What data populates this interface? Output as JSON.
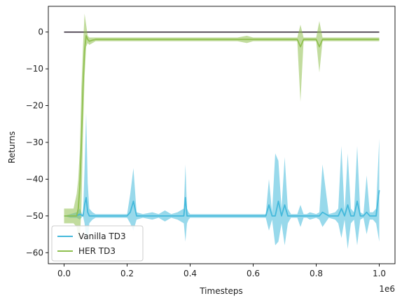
{
  "chart_data": {
    "type": "line",
    "title": "",
    "xlabel": "Timesteps",
    "ylabel": "Returns",
    "x_offset_label": "1e6",
    "xlim": [
      -0.05,
      1.05
    ],
    "ylim": [
      -63,
      7
    ],
    "x_ticks": [
      0.0,
      0.2,
      0.4,
      0.6,
      0.8,
      1.0
    ],
    "x_tick_labels": [
      "0.0",
      "0.2",
      "0.4",
      "0.6",
      "0.8",
      "1.0"
    ],
    "y_ticks": [
      0,
      -10,
      -20,
      -30,
      -40,
      -50,
      -60
    ],
    "y_tick_labels": [
      "0",
      "−10",
      "−20",
      "−30",
      "−40",
      "−50",
      "−60"
    ],
    "legend_position": "lower-left",
    "grid": false,
    "reference_line": {
      "value": 0,
      "color": "#2b1f2f"
    },
    "series": [
      {
        "name": "Vanilla TD3",
        "color": "#44b9db",
        "fill_color": "#44b9db",
        "x": [
          0.0,
          0.02,
          0.04,
          0.05,
          0.06,
          0.065,
          0.07,
          0.075,
          0.08,
          0.09,
          0.1,
          0.12,
          0.15,
          0.18,
          0.2,
          0.21,
          0.22,
          0.23,
          0.25,
          0.28,
          0.3,
          0.32,
          0.34,
          0.36,
          0.38,
          0.385,
          0.39,
          0.395,
          0.4,
          0.45,
          0.48,
          0.5,
          0.55,
          0.6,
          0.64,
          0.65,
          0.66,
          0.67,
          0.68,
          0.69,
          0.7,
          0.71,
          0.72,
          0.74,
          0.75,
          0.76,
          0.77,
          0.78,
          0.8,
          0.81,
          0.82,
          0.84,
          0.86,
          0.87,
          0.88,
          0.89,
          0.9,
          0.91,
          0.92,
          0.93,
          0.94,
          0.95,
          0.96,
          0.97,
          0.98,
          0.99,
          1.0
        ],
        "mean": [
          -50,
          -50,
          -50,
          -49.5,
          -50,
          -47,
          -45,
          -49,
          -50,
          -50,
          -50,
          -50,
          -50,
          -50,
          -50,
          -49,
          -46,
          -50,
          -50,
          -50,
          -50,
          -50,
          -50,
          -50,
          -50,
          -45,
          -50,
          -50,
          -50,
          -50,
          -50,
          -50,
          -50,
          -50,
          -50,
          -47,
          -50,
          -50,
          -46,
          -50,
          -47,
          -50,
          -50,
          -50,
          -50,
          -50,
          -50,
          -50,
          -50,
          -50,
          -49,
          -50,
          -50,
          -50,
          -48,
          -50,
          -47,
          -50,
          -50,
          -46,
          -50,
          -50,
          -49,
          -50,
          -50,
          -50,
          -43
        ],
        "lower": [
          -50,
          -50.5,
          -50.5,
          -51,
          -50,
          -52,
          -56,
          -57,
          -52,
          -51,
          -50.5,
          -50.5,
          -50.5,
          -50.5,
          -50.5,
          -52,
          -54,
          -51,
          -50.5,
          -51,
          -50.5,
          -51.5,
          -50.5,
          -51,
          -52,
          -57,
          -52,
          -51,
          -50.5,
          -50.5,
          -50.5,
          -50.5,
          -50.5,
          -50.5,
          -50.5,
          -54,
          -51,
          -58,
          -57,
          -52,
          -58,
          -52,
          -50.5,
          -50.5,
          -53,
          -50.5,
          -50.5,
          -51,
          -50.5,
          -51,
          -53,
          -50.5,
          -51,
          -52,
          -56,
          -51,
          -59,
          -52,
          -51,
          -58,
          -51,
          -50.5,
          -55,
          -51,
          -51,
          -52,
          -57
        ],
        "upper": [
          -50,
          -49.5,
          -49,
          -48,
          -50,
          -37,
          -22,
          -41,
          -48,
          -49,
          -49.5,
          -49.5,
          -49.5,
          -49.5,
          -49.5,
          -44,
          -37,
          -49,
          -49.5,
          -49,
          -49.5,
          -48.5,
          -49.5,
          -49,
          -48,
          -36,
          -48,
          -49,
          -49.5,
          -49.5,
          -49.5,
          -49.5,
          -49.5,
          -49.5,
          -49.5,
          -40,
          -49,
          -33,
          -35,
          -48,
          -34,
          -48,
          -49.5,
          -49.5,
          -47,
          -49.5,
          -49.5,
          -49,
          -49.5,
          -49,
          -36,
          -49.5,
          -49,
          -48,
          -31,
          -49,
          -33,
          -48,
          -49,
          -31,
          -49,
          -49.5,
          -39,
          -49,
          -49,
          -48,
          -29
        ]
      },
      {
        "name": "HER TD3",
        "color": "#8fc04f",
        "fill_color": "#8fc04f",
        "x": [
          0.0,
          0.01,
          0.02,
          0.03,
          0.04,
          0.045,
          0.05,
          0.055,
          0.06,
          0.065,
          0.07,
          0.075,
          0.08,
          0.09,
          0.1,
          0.12,
          0.15,
          0.2,
          0.25,
          0.3,
          0.35,
          0.4,
          0.45,
          0.5,
          0.55,
          0.58,
          0.6,
          0.65,
          0.7,
          0.74,
          0.75,
          0.76,
          0.8,
          0.81,
          0.82,
          0.85,
          0.9,
          0.95,
          1.0
        ],
        "mean": [
          -50,
          -50,
          -50,
          -50,
          -50,
          -48,
          -42,
          -30,
          -15,
          -5,
          -1,
          -2,
          -2.5,
          -2.2,
          -2,
          -2,
          -2,
          -2,
          -2,
          -2,
          -2,
          -2,
          -2,
          -2,
          -2,
          -2,
          -2,
          -2,
          -2,
          -2,
          -4,
          -2,
          -2,
          -4,
          -2,
          -2,
          -2,
          -2,
          -2
        ],
        "lower": [
          -52,
          -52,
          -52,
          -52,
          -53,
          -56,
          -56,
          -48,
          -28,
          -12,
          -4,
          -3,
          -3.5,
          -3,
          -2.5,
          -2.5,
          -2.5,
          -2.5,
          -2.5,
          -2.5,
          -2.5,
          -2.5,
          -2.5,
          -2.5,
          -2.5,
          -3,
          -2.5,
          -2.5,
          -2.5,
          -2.5,
          -19,
          -2.5,
          -2.5,
          -11,
          -2.5,
          -2.5,
          -2.5,
          -2.5,
          -2.5
        ],
        "upper": [
          -48,
          -48,
          -48,
          -48,
          -44,
          -40,
          -32,
          -15,
          -4,
          5,
          2,
          -1,
          -1.5,
          -1.5,
          -1.5,
          -1.5,
          -1.5,
          -1.5,
          -1.5,
          -1.5,
          -1.5,
          -1.5,
          -1.5,
          -1.5,
          -1.5,
          -1,
          -1.5,
          -1.5,
          -1.5,
          -1.5,
          2,
          -1.5,
          -1.5,
          3,
          -1.5,
          -1.5,
          -1.5,
          -1.5,
          -1.5
        ]
      }
    ]
  }
}
